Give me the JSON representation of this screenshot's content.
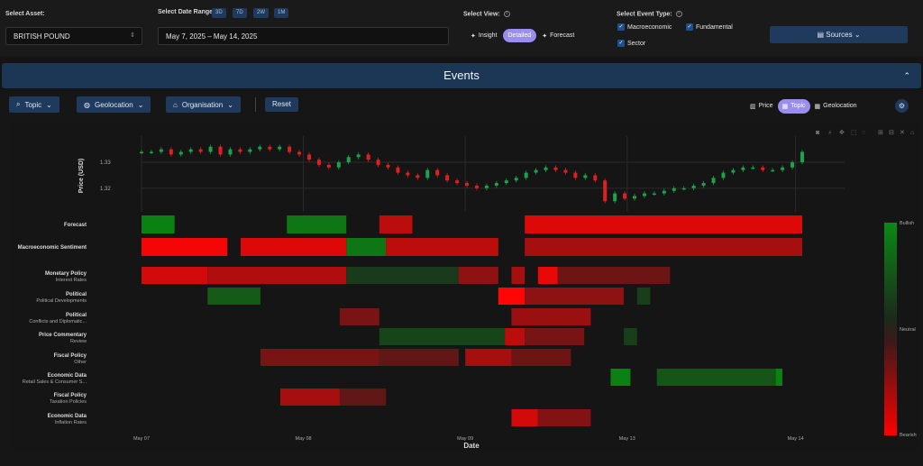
{
  "topbar": {
    "asset_label": "Select Asset:",
    "asset_value": "BRITISH POUND",
    "date_label": "Select Date Range:",
    "ranges": [
      "3D",
      "7D",
      "2W",
      "1M"
    ],
    "date_value": "May 7, 2025 – May 14, 2025",
    "view_label": "Select View:",
    "views": [
      "Insight",
      "Detailed",
      "Forecast"
    ],
    "active_view": "Detailed",
    "event_type_label": "Select Event Type:",
    "event_types": [
      "Macroeconomic",
      "Fundamental",
      "Sector"
    ],
    "sources_label": "Sources"
  },
  "events_header": "Events",
  "filters": {
    "topic": "Topic",
    "geolocation": "Geolocation",
    "organisation": "Organisation",
    "reset": "Reset"
  },
  "view_modes": [
    "Price",
    "Topic",
    "Geolocation"
  ],
  "active_mode": "Topic",
  "icons": [
    "search-icon",
    "chevron-down-icon",
    "globe-icon",
    "bank-icon",
    "chart-icon",
    "grid-icon",
    "gear-icon",
    "camera-icon",
    "zoom-icon",
    "pan-icon",
    "select-icon",
    "lasso-icon",
    "zoom-in-icon",
    "zoom-out-icon",
    "autoscale-icon",
    "home-icon",
    "info-icon",
    "sparkle-icon",
    "check-icon",
    "doc-icon"
  ],
  "colors": {
    "bullish": "#0a7a14",
    "bearish": "#ff0000",
    "neutral": "#1e1e1e",
    "accent": "#9b8df0",
    "button": "#1f3a5c"
  },
  "chart_data": {
    "type": "heatmap",
    "price_axis_label": "Price (USD)",
    "price_ticks": [
      1.32,
      1.33
    ],
    "x_label": "Date",
    "x_ticks": [
      "May 07",
      "May 08",
      "May 09",
      "May 13",
      "May 14"
    ],
    "colorbar_labels": [
      "Bullish",
      "Neutral",
      "Bearish"
    ],
    "price_series": [
      1.334,
      1.334,
      1.335,
      1.333,
      1.334,
      1.335,
      1.334,
      1.336,
      1.333,
      1.335,
      1.334,
      1.335,
      1.336,
      1.335,
      1.336,
      1.334,
      1.333,
      1.331,
      1.329,
      1.328,
      1.33,
      1.332,
      1.333,
      1.331,
      1.329,
      1.328,
      1.326,
      1.325,
      1.324,
      1.327,
      1.325,
      1.323,
      1.322,
      1.321,
      1.32,
      1.321,
      1.322,
      1.323,
      1.324,
      1.326,
      1.327,
      1.328,
      1.327,
      1.326,
      1.324,
      1.325,
      1.323,
      1.315,
      1.318,
      1.316,
      1.317,
      1.318,
      1.318,
      1.319,
      1.32,
      1.32,
      1.321,
      1.322,
      1.324,
      1.326,
      1.327,
      1.328,
      1.328,
      1.327,
      1.327,
      1.328,
      1.33,
      1.334
    ],
    "rows": [
      {
        "title": "Forecast",
        "subtitle": "",
        "segments": [
          [
            0.0,
            0.05,
            0.9
          ],
          [
            0.22,
            0.31,
            0.8
          ],
          [
            0.36,
            0.41,
            -0.7
          ],
          [
            0.58,
            1.0,
            -0.85
          ]
        ]
      },
      {
        "title": "Macroeconomic Sentiment",
        "subtitle": "",
        "segments": [
          [
            0.0,
            0.13,
            -0.95
          ],
          [
            0.15,
            0.31,
            -0.85
          ],
          [
            0.31,
            0.37,
            0.8
          ],
          [
            0.37,
            0.54,
            -0.7
          ],
          [
            0.58,
            1.0,
            -0.6
          ]
        ]
      },
      {
        "title": "Monetary Policy",
        "subtitle": "Interest Rates",
        "segments": [
          [
            0.0,
            0.1,
            -0.8
          ],
          [
            0.1,
            0.31,
            -0.65
          ],
          [
            0.31,
            0.48,
            0.25
          ],
          [
            0.48,
            0.54,
            -0.5
          ],
          [
            0.56,
            0.58,
            -0.6
          ],
          [
            0.6,
            0.63,
            -0.9
          ],
          [
            0.63,
            0.8,
            -0.35
          ]
        ]
      },
      {
        "title": "Political",
        "subtitle": "Political Developments",
        "segments": [
          [
            0.1,
            0.18,
            0.55
          ],
          [
            0.54,
            0.58,
            -1.0
          ],
          [
            0.58,
            0.73,
            -0.5
          ],
          [
            0.75,
            0.77,
            0.3
          ]
        ]
      },
      {
        "title": "Political",
        "subtitle": "Conflicts and Diplomatic...",
        "segments": [
          [
            0.3,
            0.36,
            -0.4
          ],
          [
            0.56,
            0.68,
            -0.55
          ]
        ]
      },
      {
        "title": "Price Commentary",
        "subtitle": "Review",
        "segments": [
          [
            0.36,
            0.55,
            0.35
          ],
          [
            0.55,
            0.58,
            -0.7
          ],
          [
            0.58,
            0.67,
            -0.4
          ],
          [
            0.73,
            0.75,
            0.3
          ]
        ]
      },
      {
        "title": "Fiscal Policy",
        "subtitle": "Other",
        "segments": [
          [
            0.18,
            0.36,
            -0.4
          ],
          [
            0.36,
            0.48,
            -0.3
          ],
          [
            0.49,
            0.56,
            -0.6
          ],
          [
            0.56,
            0.65,
            -0.35
          ]
        ]
      },
      {
        "title": "Economic Data",
        "subtitle": "Retail Sales & Consumer S...",
        "segments": [
          [
            0.71,
            0.74,
            0.9
          ],
          [
            0.78,
            0.96,
            0.5
          ],
          [
            0.96,
            0.97,
            0.9
          ]
        ]
      },
      {
        "title": "Fiscal Policy",
        "subtitle": "Taxation Policies",
        "segments": [
          [
            0.21,
            0.3,
            -0.6
          ],
          [
            0.3,
            0.37,
            -0.3
          ]
        ]
      },
      {
        "title": "Economic Data",
        "subtitle": "Inflation Rates",
        "segments": [
          [
            0.56,
            0.6,
            -0.8
          ],
          [
            0.6,
            0.68,
            -0.45
          ]
        ]
      }
    ]
  }
}
